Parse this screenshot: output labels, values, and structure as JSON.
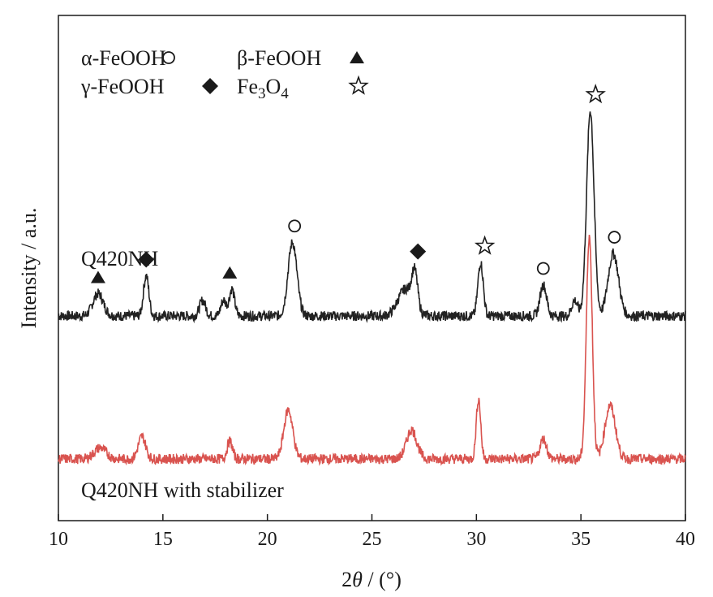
{
  "chart_data": {
    "type": "line",
    "xlabel_prefix": "2",
    "xlabel_var": "θ",
    "xlabel_unit": " / (°)",
    "ylabel": "Intensity / a.u.",
    "xlim": [
      10,
      40
    ],
    "xticks": [
      "10",
      "15",
      "20",
      "25",
      "30",
      "35",
      "40"
    ],
    "grid": false,
    "legend": {
      "placement": "top-left",
      "entries": [
        {
          "label": "α-FeOOH",
          "marker": "circle"
        },
        {
          "label": "β-FeOOH",
          "marker": "triangle"
        },
        {
          "label": "γ-FeOOH",
          "marker": "diamond"
        },
        {
          "label": "Fe3O4",
          "label_parts": [
            "Fe",
            "3",
            "O",
            "4"
          ],
          "marker": "star"
        }
      ]
    },
    "series": [
      {
        "name": "Q420NH",
        "color": "#222222",
        "baseline": 0.64,
        "peaks": [
          [
            11.9,
            0.1,
            0.35
          ],
          [
            14.2,
            0.18,
            0.18
          ],
          [
            16.9,
            0.07,
            0.2
          ],
          [
            17.9,
            0.07,
            0.18
          ],
          [
            18.3,
            0.12,
            0.18
          ],
          [
            21.2,
            0.33,
            0.3
          ],
          [
            26.6,
            0.12,
            0.5
          ],
          [
            27.05,
            0.16,
            0.2
          ],
          [
            30.2,
            0.24,
            0.18
          ],
          [
            33.2,
            0.14,
            0.22
          ],
          [
            34.7,
            0.07,
            0.2
          ],
          [
            35.45,
            0.92,
            0.25
          ],
          [
            36.55,
            0.28,
            0.35
          ]
        ],
        "markers": [
          {
            "x": 11.9,
            "marker": "triangle"
          },
          {
            "x": 14.2,
            "marker": "diamond"
          },
          {
            "x": 18.2,
            "marker": "triangle"
          },
          {
            "x": 21.3,
            "marker": "circle"
          },
          {
            "x": 27.2,
            "marker": "diamond"
          },
          {
            "x": 30.4,
            "marker": "star"
          },
          {
            "x": 33.2,
            "marker": "circle"
          },
          {
            "x": 35.7,
            "marker": "star"
          },
          {
            "x": 36.6,
            "marker": "circle"
          }
        ]
      },
      {
        "name": "Q420NH with stabilizer",
        "color": "#d9534f",
        "baseline": 0.0,
        "peaks": [
          [
            12.0,
            0.05,
            0.4
          ],
          [
            14.0,
            0.1,
            0.25
          ],
          [
            18.2,
            0.08,
            0.18
          ],
          [
            21.0,
            0.22,
            0.3
          ],
          [
            26.9,
            0.13,
            0.35
          ],
          [
            30.1,
            0.27,
            0.15
          ],
          [
            33.2,
            0.09,
            0.22
          ],
          [
            35.4,
            1.0,
            0.2
          ],
          [
            36.4,
            0.24,
            0.35
          ]
        ],
        "markers": []
      }
    ]
  }
}
